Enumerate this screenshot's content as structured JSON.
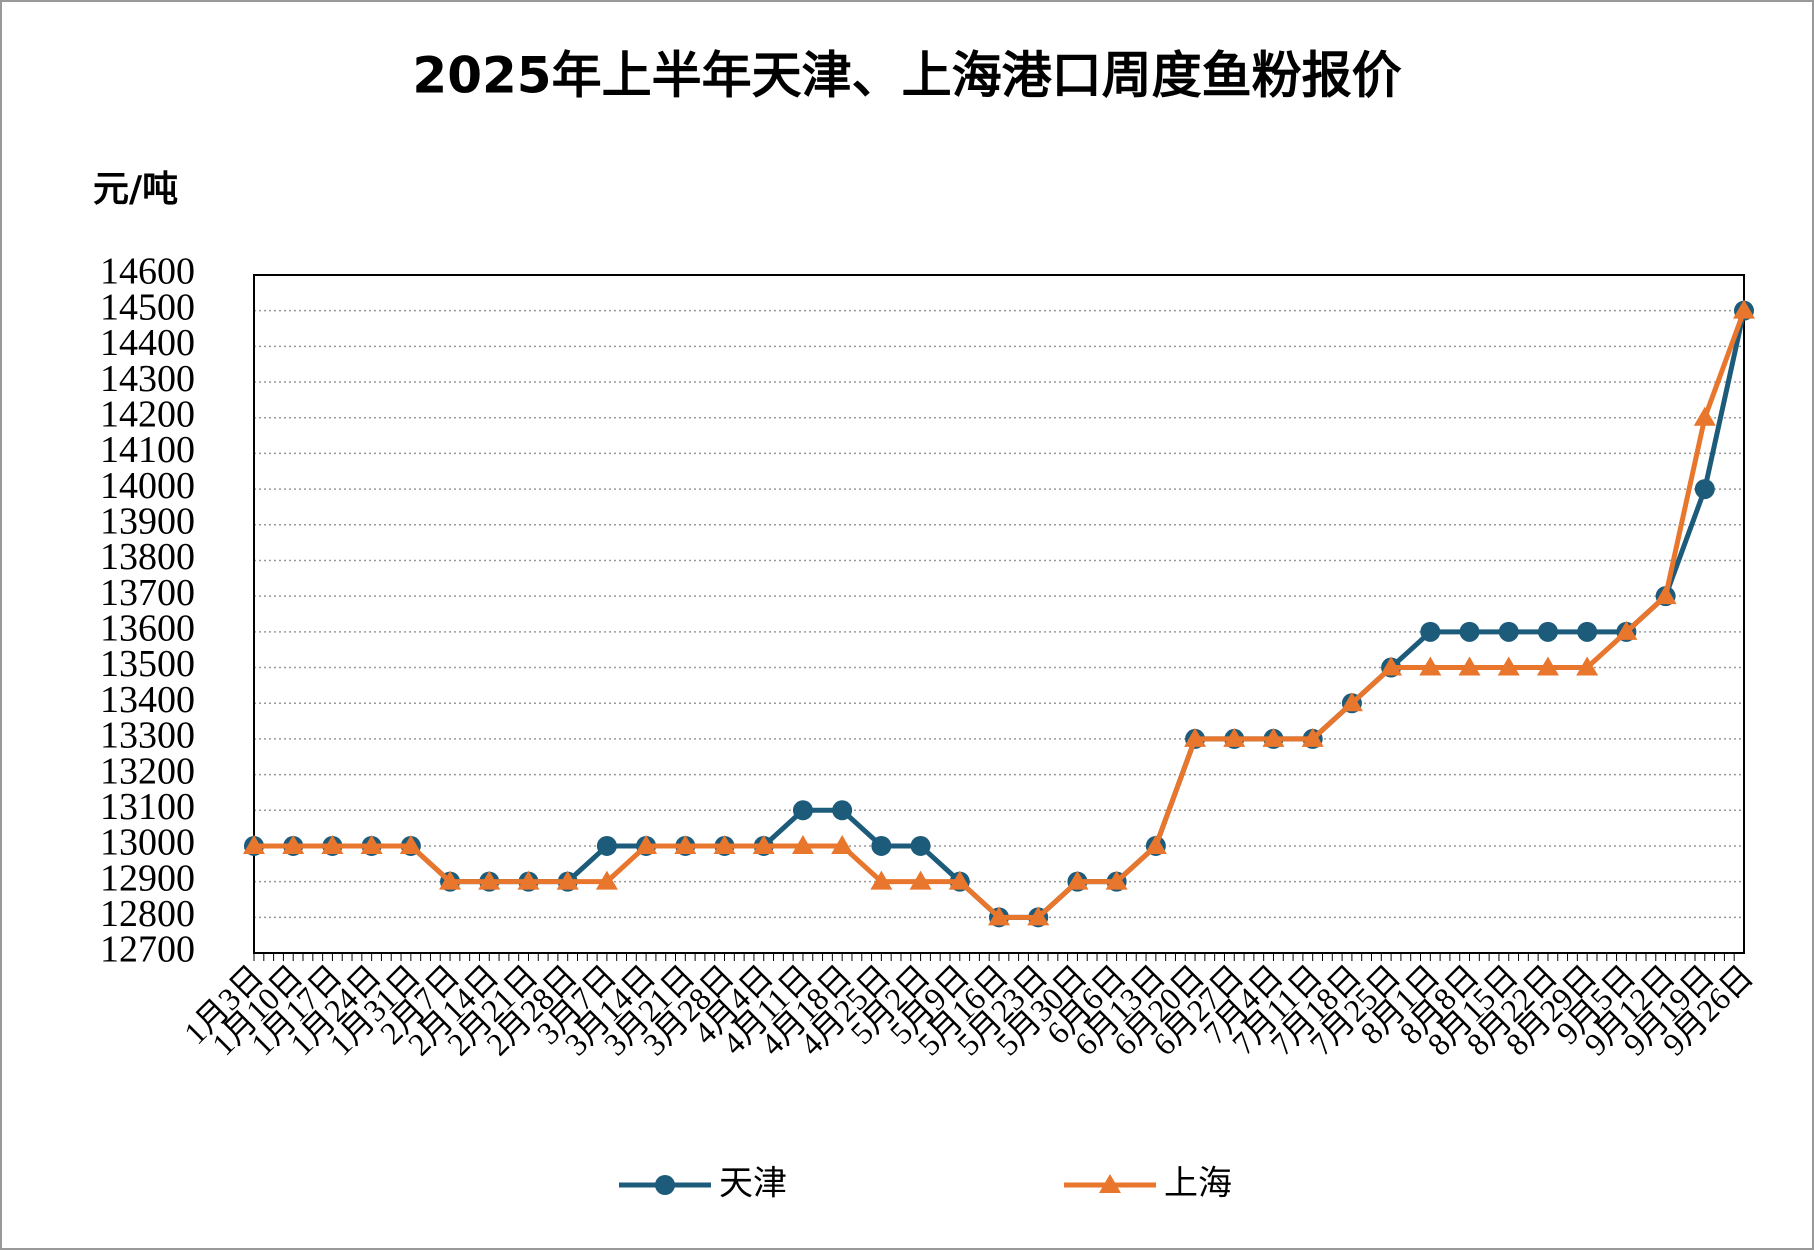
{
  "chart_data": {
    "type": "line",
    "title": "2025年上半年天津、上海港口周度鱼粉报价",
    "y_label": "元/吨",
    "categories": [
      "1月3日",
      "1月10日",
      "1月17日",
      "1月24日",
      "1月31日",
      "2月7日",
      "2月14日",
      "2月21日",
      "2月28日",
      "3月7日",
      "3月14日",
      "3月21日",
      "3月28日",
      "4月4日",
      "4月11日",
      "4月18日",
      "4月25日",
      "5月2日",
      "5月9日",
      "5月16日",
      "5月23日",
      "5月30日",
      "6月6日",
      "6月13日",
      "6月20日",
      "6月27日",
      "7月4日",
      "7月11日",
      "7月18日",
      "7月25日",
      "8月1日",
      "8月8日",
      "8月15日",
      "8月22日",
      "8月29日",
      "9月5日",
      "9月12日",
      "9月19日",
      "9月26日"
    ],
    "series": [
      {
        "name": "天津",
        "color": "#1d5b7b",
        "marker": "circle",
        "values": [
          13000,
          13000,
          13000,
          13000,
          13000,
          12900,
          12900,
          12900,
          12900,
          13000,
          13000,
          13000,
          13000,
          13000,
          13100,
          13100,
          13000,
          13000,
          12900,
          12800,
          12800,
          12900,
          12900,
          13000,
          13300,
          13300,
          13300,
          13300,
          13400,
          13500,
          13600,
          13600,
          13600,
          13600,
          13600,
          13600,
          13700,
          14000,
          14500
        ]
      },
      {
        "name": "上海",
        "color": "#e8762d",
        "marker": "triangle",
        "values": [
          13000,
          13000,
          13000,
          13000,
          13000,
          12900,
          12900,
          12900,
          12900,
          12900,
          13000,
          13000,
          13000,
          13000,
          13000,
          13000,
          12900,
          12900,
          12900,
          12800,
          12800,
          12900,
          12900,
          13000,
          13300,
          13300,
          13300,
          13300,
          13400,
          13500,
          13500,
          13500,
          13500,
          13500,
          13500,
          13600,
          13700,
          14200,
          14500
        ]
      }
    ],
    "ylim": [
      12700,
      14600
    ],
    "yticks": [
      12700,
      12800,
      12900,
      13000,
      13100,
      13200,
      13300,
      13400,
      13500,
      13600,
      13700,
      13800,
      13900,
      14000,
      14100,
      14200,
      14300,
      14400,
      14500,
      14600
    ],
    "grid": true,
    "legend": "bottom"
  }
}
